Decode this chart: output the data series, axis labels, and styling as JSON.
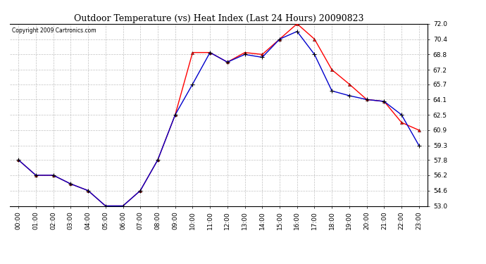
{
  "title": "Outdoor Temperature (vs) Heat Index (Last 24 Hours) 20090823",
  "copyright": "Copyright 2009 Cartronics.com",
  "x_labels": [
    "00:00",
    "01:00",
    "02:00",
    "03:00",
    "04:00",
    "05:00",
    "06:00",
    "07:00",
    "08:00",
    "09:00",
    "10:00",
    "11:00",
    "12:00",
    "13:00",
    "14:00",
    "15:00",
    "16:00",
    "17:00",
    "18:00",
    "19:00",
    "20:00",
    "21:00",
    "22:00",
    "23:00"
  ],
  "temp_data": [
    57.8,
    56.2,
    56.2,
    55.3,
    54.6,
    53.0,
    53.0,
    54.6,
    57.8,
    62.5,
    69.0,
    69.0,
    68.0,
    69.0,
    68.8,
    70.4,
    72.0,
    70.4,
    67.2,
    65.7,
    64.1,
    63.9,
    61.7,
    60.9
  ],
  "heat_data": [
    57.8,
    56.2,
    56.2,
    55.3,
    54.6,
    53.0,
    53.0,
    54.6,
    57.8,
    62.5,
    65.7,
    69.0,
    68.0,
    68.8,
    68.5,
    70.4,
    71.2,
    68.8,
    65.0,
    64.5,
    64.1,
    63.9,
    62.5,
    59.3
  ],
  "temp_color": "#FF0000",
  "heat_color": "#0000CC",
  "ylim_min": 53.0,
  "ylim_max": 72.0,
  "yticks": [
    53.0,
    54.6,
    56.2,
    57.8,
    59.3,
    60.9,
    62.5,
    64.1,
    65.7,
    67.2,
    68.8,
    70.4,
    72.0
  ],
  "bg_color": "#FFFFFF",
  "plot_bg_color": "#FFFFFF",
  "grid_color": "#BBBBBB",
  "title_fontsize": 9,
  "tick_fontsize": 6.5
}
